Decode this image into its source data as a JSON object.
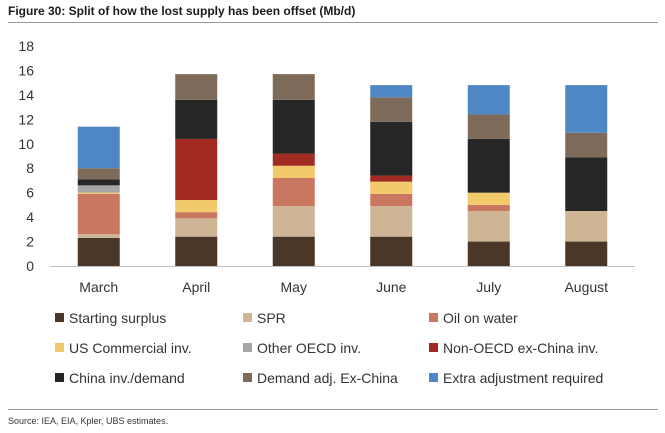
{
  "figure_title": "Figure 30: Split of how the lost supply has been offset (Mb/d)",
  "source": "Source: IEA, EIA, Kpler, UBS estimates.",
  "chart_data": {
    "type": "bar",
    "stacked": true,
    "title": "",
    "xlabel": "",
    "ylabel": "",
    "ylim": [
      0,
      18
    ],
    "yticks": [
      0,
      2,
      4,
      6,
      8,
      10,
      12,
      14,
      16,
      18
    ],
    "grid": false,
    "legend_position": "bottom",
    "categories": [
      "March",
      "April",
      "May",
      "June",
      "July",
      "August"
    ],
    "series": [
      {
        "name": "Starting surplus",
        "color": "#4a3728",
        "values": [
          2.3,
          2.4,
          2.4,
          2.4,
          2.0,
          2.0
        ]
      },
      {
        "name": "SPR",
        "color": "#cdb595",
        "values": [
          0.3,
          1.5,
          2.5,
          2.5,
          2.5,
          2.5
        ]
      },
      {
        "name": "Oil on water",
        "color": "#c97760",
        "values": [
          3.3,
          0.5,
          2.3,
          1.0,
          0.5,
          0.0
        ]
      },
      {
        "name": "US Commercial inv.",
        "color": "#f2c96b",
        "values": [
          0.1,
          1.0,
          1.0,
          1.0,
          1.0,
          0.0
        ]
      },
      {
        "name": "Other OECD inv.",
        "color": "#a6a6a6",
        "values": [
          0.6,
          0.0,
          0.0,
          0.0,
          0.0,
          0.0
        ]
      },
      {
        "name": "Non-OECD ex-China inv.",
        "color": "#a12b22",
        "values": [
          0.0,
          5.0,
          1.0,
          0.5,
          0.0,
          0.0
        ]
      },
      {
        "name": "China inv./demand",
        "color": "#262626",
        "values": [
          0.5,
          3.2,
          4.4,
          4.4,
          4.4,
          4.4
        ]
      },
      {
        "name": "Demand adj. Ex-China",
        "color": "#7e6a58",
        "values": [
          0.9,
          2.1,
          2.1,
          2.0,
          2.0,
          2.0
        ]
      },
      {
        "name": "Extra adjustment required",
        "color": "#4f87c4",
        "values": [
          3.4,
          0.0,
          0.0,
          1.0,
          2.4,
          3.9
        ]
      }
    ]
  }
}
